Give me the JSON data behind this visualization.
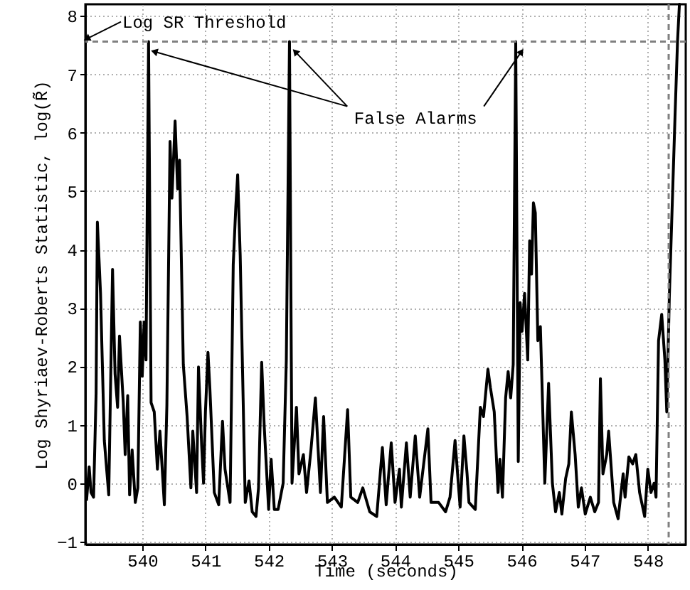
{
  "chart_data": {
    "type": "line",
    "xlabel": "Time (seconds)",
    "ylabel": "Log Shyriaev-Roberts Statistic, log(R̃)",
    "xlim": [
      539.1,
      548.6
    ],
    "ylim": [
      -1.05,
      8.2
    ],
    "xticks": [
      540,
      541,
      542,
      543,
      544,
      545,
      546,
      547,
      548
    ],
    "yticks": [
      -1,
      0,
      1,
      2,
      3,
      4,
      5,
      6,
      7,
      8
    ],
    "grid": true,
    "marker": "none",
    "line_style": "solid",
    "ref_lines": [
      {
        "axis": "y",
        "value": 7.56,
        "label": "Log SR Threshold",
        "color": "#808080",
        "line_style": "dashed"
      },
      {
        "axis": "x",
        "value": 548.33,
        "label": null,
        "color": "#808080",
        "line_style": "dashed"
      }
    ],
    "annotations": [
      {
        "text": "False Alarms",
        "x": 542.33,
        "y": 7.56
      }
    ],
    "series": [
      {
        "color": "#000000",
        "x": [
          539.12,
          539.16,
          539.19,
          539.23,
          539.27,
          539.29,
          539.34,
          539.4,
          539.47,
          539.53,
          539.57,
          539.61,
          539.64,
          539.7,
          539.73,
          539.77,
          539.8,
          539.84,
          539.89,
          539.93,
          539.97,
          540.0,
          540.03,
          540.06,
          540.1,
          540.14,
          540.19,
          540.24,
          540.28,
          540.35,
          540.39,
          540.44,
          540.47,
          540.52,
          540.56,
          540.59,
          540.65,
          540.71,
          540.77,
          540.8,
          540.86,
          540.89,
          540.94,
          540.97,
          541.0,
          541.04,
          541.07,
          541.14,
          541.21,
          541.27,
          541.31,
          541.39,
          541.44,
          541.48,
          541.51,
          541.55,
          541.63,
          541.69,
          541.74,
          541.8,
          541.84,
          541.89,
          541.93,
          542.0,
          542.04,
          542.09,
          542.15,
          542.23,
          542.28,
          542.33,
          542.37,
          542.44,
          542.48,
          542.55,
          542.6,
          542.67,
          542.74,
          542.82,
          542.87,
          542.93,
          543.04,
          543.15,
          543.25,
          543.3,
          543.41,
          543.49,
          543.6,
          543.71,
          543.8,
          543.86,
          543.94,
          544.0,
          544.07,
          544.1,
          544.18,
          544.24,
          544.32,
          544.39,
          544.52,
          544.57,
          544.69,
          544.8,
          544.87,
          544.95,
          545.03,
          545.09,
          545.14,
          545.17,
          545.27,
          545.35,
          545.4,
          545.47,
          545.51,
          545.57,
          545.63,
          545.66,
          545.7,
          545.75,
          545.79,
          545.83,
          545.87,
          545.91,
          545.95,
          545.98,
          546.01,
          546.05,
          546.1,
          546.13,
          546.16,
          546.19,
          546.22,
          546.26,
          546.3,
          546.37,
          546.43,
          546.49,
          546.54,
          546.6,
          546.64,
          546.7,
          546.75,
          546.79,
          546.85,
          546.9,
          546.95,
          547.01,
          547.09,
          547.16,
          547.22,
          547.25,
          547.29,
          547.35,
          547.38,
          547.46,
          547.53,
          547.61,
          547.64,
          547.7,
          547.76,
          547.81,
          547.87,
          547.95,
          548.0,
          548.05,
          548.1,
          548.13,
          548.17,
          548.22,
          548.27,
          548.3,
          548.34,
          548.43,
          548.47,
          548.5
        ],
        "values": [
          -0.28,
          0.28,
          -0.16,
          -0.24,
          1.54,
          4.47,
          3.25,
          0.73,
          -0.2,
          3.66,
          1.87,
          1.3,
          2.52,
          1.38,
          0.49,
          1.5,
          -0.2,
          0.57,
          -0.33,
          -0.08,
          2.76,
          1.83,
          2.76,
          2.11,
          7.56,
          1.38,
          1.22,
          0.24,
          0.89,
          -0.37,
          1.34,
          5.85,
          4.88,
          6.2,
          5.04,
          5.53,
          2.03,
          1.14,
          -0.08,
          0.89,
          -0.16,
          1.99,
          0.65,
          0,
          1.22,
          2.24,
          1.63,
          -0.16,
          -0.37,
          1.06,
          0.24,
          -0.33,
          3.74,
          4.72,
          5.28,
          3.9,
          -0.33,
          0.04,
          -0.49,
          -0.57,
          -0.08,
          2.07,
          0.98,
          -0.45,
          0.41,
          -0.45,
          -0.45,
          0,
          2.11,
          7.56,
          0,
          1.3,
          0.16,
          0.49,
          -0.16,
          0.57,
          1.46,
          -0.16,
          1.14,
          -0.33,
          -0.24,
          -0.41,
          1.26,
          -0.24,
          -0.33,
          -0.08,
          -0.49,
          -0.57,
          0.61,
          -0.37,
          0.69,
          -0.33,
          0.24,
          -0.41,
          0.69,
          -0.24,
          0.81,
          -0.24,
          0.93,
          -0.33,
          -0.33,
          -0.49,
          -0.24,
          0.73,
          -0.41,
          0.81,
          0.16,
          -0.33,
          -0.45,
          1.3,
          1.14,
          1.95,
          1.63,
          1.22,
          -0.16,
          0.41,
          -0.24,
          1.46,
          1.91,
          1.46,
          2.03,
          7.56,
          0.37,
          3.09,
          2.6,
          3.25,
          2.11,
          4.15,
          3.58,
          4.8,
          4.63,
          2.44,
          2.68,
          0,
          1.71,
          0,
          -0.49,
          -0.16,
          -0.53,
          0.08,
          0.33,
          1.22,
          0.49,
          -0.41,
          -0.08,
          -0.53,
          -0.24,
          -0.49,
          -0.33,
          1.79,
          0.16,
          0.49,
          0.89,
          -0.33,
          -0.61,
          0.16,
          -0.24,
          0.45,
          0.33,
          0.49,
          -0.16,
          -0.57,
          0.24,
          -0.16,
          0,
          -0.24,
          2.44,
          2.89,
          2.11,
          1.22,
          3.17,
          6.26,
          7.56,
          8.2
        ]
      }
    ]
  }
}
